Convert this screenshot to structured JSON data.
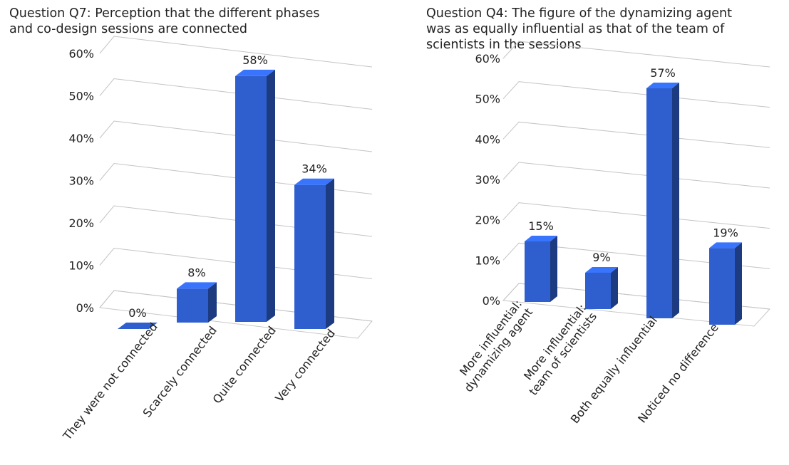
{
  "chart_data": [
    {
      "type": "bar",
      "title": "Question Q7: Perception that the different phases\nand co-design sessions are connected",
      "categories": [
        "They were not connected",
        "Scarcely connected",
        "Quite connected",
        "Very connected"
      ],
      "values": [
        0,
        8,
        58,
        34
      ],
      "data_labels": [
        "0%",
        "8%",
        "58%",
        "34%"
      ],
      "y_ticks": [
        "0%",
        "10%",
        "20%",
        "30%",
        "40%",
        "50%",
        "60%"
      ],
      "ylim": [
        0,
        60
      ],
      "grid": true,
      "legend": "none",
      "bar_color": "#2f5fcf",
      "style": "3d-column"
    },
    {
      "type": "bar",
      "title": "Question Q4: The figure of the dynamizing agent\nwas as equally influential as that of the team of\nscientists in the sessions",
      "categories": [
        "More influential:\ndynamizing agent",
        "More influential:\nteam of scientists",
        "Both equally influential",
        "Noticed no difference"
      ],
      "values": [
        15,
        9,
        57,
        19
      ],
      "data_labels": [
        "15%",
        "9%",
        "57%",
        "19%"
      ],
      "y_ticks": [
        "0%",
        "10%",
        "20%",
        "30%",
        "40%",
        "50%",
        "60%"
      ],
      "ylim": [
        0,
        60
      ],
      "grid": true,
      "legend": "none",
      "bar_color": "#2f5fcf",
      "style": "3d-column"
    }
  ]
}
